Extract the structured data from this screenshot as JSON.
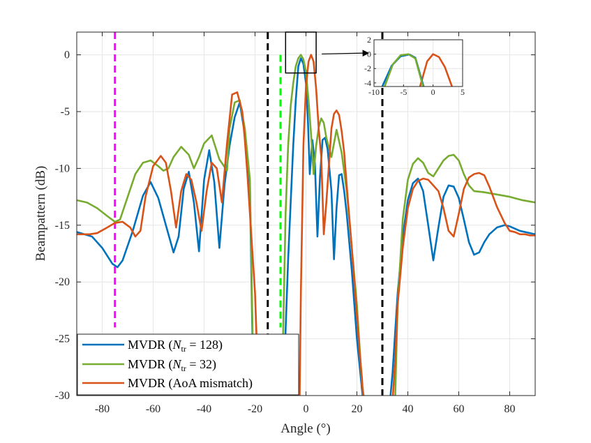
{
  "chart_data": {
    "type": "line",
    "title": "",
    "xlabel": "Angle (°)",
    "ylabel": "Beampattern (dB)",
    "xlim": [
      -90,
      90
    ],
    "ylim": [
      -30,
      2
    ],
    "grid": true,
    "xticks": [
      -80,
      -60,
      -40,
      -20,
      0,
      20,
      40,
      60,
      80
    ],
    "yticks": [
      0,
      -5,
      -10,
      -15,
      -20,
      -25,
      -30
    ],
    "xtick_labels": [
      "-80",
      "-60",
      "-40",
      "-20",
      "0",
      "20",
      "40",
      "60",
      "80"
    ],
    "ytick_labels": [
      "0",
      "-5",
      "-10",
      "-15",
      "-20",
      "-25",
      "-30"
    ],
    "legend_position": "bottom-left",
    "series": [
      {
        "name": "MVDR (N_tr = 128)",
        "legend_prefix": "MVDR (",
        "legend_math": "N",
        "legend_sub": "tr",
        "legend_suffix": " = 128)",
        "color": "#0072BD",
        "x": [
          -90,
          -84,
          -80,
          -76,
          -74,
          -72,
          -68,
          -64,
          -61,
          -58,
          -55,
          -52,
          -50,
          -48,
          -46,
          -44,
          -42,
          -40,
          -38,
          -36,
          -34,
          -32,
          -30,
          -28,
          -26,
          -24,
          -22,
          -20.6,
          -19,
          -17,
          -15,
          -13,
          -11,
          -9,
          -7,
          -5,
          -4,
          -3,
          -2,
          -1,
          0,
          0.8,
          1.5,
          2.5,
          3.5,
          4.5,
          5.5,
          6.5,
          7.5,
          8.5,
          10,
          11,
          12,
          13,
          14,
          15,
          16,
          18,
          20,
          22,
          22.5,
          23,
          23.5,
          24,
          25
        ],
        "y": [
          -15.6,
          -16.0,
          -17.0,
          -18.4,
          -18.7,
          -18.1,
          -15.5,
          -12.4,
          -11.2,
          -12.6,
          -15.0,
          -17.4,
          -16.0,
          -11.8,
          -10.3,
          -13.0,
          -17.3,
          -11.0,
          -8.4,
          -11.2,
          -17.0,
          -11.5,
          -8.0,
          -5.5,
          -4.2,
          -7.0,
          -12.0,
          -30.5,
          null,
          null,
          null,
          null,
          null,
          -30.5,
          -18.0,
          -8.0,
          -4.0,
          -1.0,
          -0.3,
          -0.8,
          -2.5,
          -6.0,
          -10.5,
          -7.5,
          -9.5,
          -16.0,
          -10.8,
          -7.5,
          -7.3,
          -8.3,
          -12.0,
          -18.0,
          -13.5,
          -10.6,
          -10.5,
          -12.0,
          -14.0,
          -19.0,
          -25.0,
          -29.5,
          -30.5,
          null,
          null,
          null,
          null
        ],
        "x2": [
          33,
          34,
          35,
          36,
          38,
          40,
          42,
          44,
          46,
          48,
          50,
          52,
          54,
          56,
          58,
          60,
          62,
          64,
          66,
          68,
          70,
          72,
          75,
          78,
          80,
          82,
          84,
          86,
          88,
          90
        ],
        "y2": [
          -30.5,
          -28.0,
          -24.5,
          -21.0,
          -16.0,
          -12.8,
          -11.3,
          -10.9,
          -12.0,
          -15.0,
          -18.1,
          -15.2,
          -12.5,
          -11.5,
          -11.6,
          -12.6,
          -14.5,
          -16.5,
          -17.6,
          -17.4,
          -16.5,
          -15.8,
          -15.2,
          -15.0,
          -15.1,
          -15.3,
          -15.5,
          -15.6,
          -15.7,
          -15.8
        ]
      },
      {
        "name": "MVDR (N_tr = 32)",
        "legend_prefix": "MVDR (",
        "legend_math": "N",
        "legend_sub": "tr",
        "legend_suffix": " = 32)",
        "color": "#77AC30",
        "x": [
          -90,
          -86,
          -82,
          -78,
          -75,
          -73,
          -70,
          -67,
          -64,
          -61,
          -58,
          -56,
          -54,
          -52,
          -49,
          -46,
          -44,
          -42,
          -40,
          -37,
          -34,
          -31,
          -30,
          -28,
          -26,
          -24,
          -22,
          -20.5,
          -19,
          -17,
          -15,
          -13,
          -11,
          -9.5,
          -8,
          -7,
          -6,
          -5,
          -4,
          -3,
          -2,
          -1,
          0,
          1,
          2,
          3,
          4,
          5,
          6,
          7,
          8,
          10,
          12,
          14,
          16,
          18,
          20,
          22,
          23,
          23.5,
          24
        ],
        "y": [
          -12.8,
          -13.0,
          -13.5,
          -14.2,
          -14.7,
          -14.5,
          -12.5,
          -10.5,
          -9.5,
          -9.3,
          -9.8,
          -10.2,
          -10.0,
          -9.0,
          -8.1,
          -8.8,
          -10.0,
          -9.0,
          -7.8,
          -7.1,
          -9.2,
          -10.2,
          -6.5,
          -4.2,
          -4.0,
          -6.5,
          -11.0,
          -30.5,
          null,
          null,
          null,
          null,
          null,
          -30.5,
          -14.0,
          -8.0,
          -4.5,
          -2.5,
          -1.0,
          -0.3,
          0.0,
          -0.4,
          -1.5,
          -4.0,
          -7.0,
          -10.5,
          -8.0,
          -6.4,
          -5.6,
          -6.0,
          -7.3,
          -9.0,
          -6.6,
          -8.6,
          -12.0,
          -17.0,
          -22.0,
          -29.0,
          -30.5,
          null,
          null
        ],
        "x2": [
          35,
          36,
          38,
          40,
          42,
          44,
          46,
          48,
          50,
          52,
          54,
          56,
          58,
          60,
          62,
          64,
          66,
          70,
          75,
          80,
          85,
          90
        ],
        "y2": [
          -30.5,
          -22.0,
          -14.5,
          -11.0,
          -9.6,
          -9.1,
          -9.5,
          -10.4,
          -10.7,
          -10.0,
          -9.3,
          -8.9,
          -8.8,
          -9.3,
          -10.5,
          -11.5,
          -12.0,
          -12.1,
          -12.3,
          -12.5,
          -12.8,
          -13.0
        ]
      },
      {
        "name": "MVDR (AoA mismatch)",
        "legend_prefix": "MVDR (AoA mismatch)",
        "legend_math": "",
        "legend_sub": "",
        "legend_suffix": "",
        "color": "#D95319",
        "x": [
          -90,
          -85,
          -82,
          -78,
          -75,
          -72,
          -69,
          -67,
          -65,
          -63,
          -60,
          -57,
          -55,
          -53,
          -51,
          -49,
          -47,
          -45,
          -43,
          -41,
          -39,
          -37,
          -35,
          -33,
          -31,
          -29,
          -27,
          -25,
          -24,
          -23,
          -22,
          -20,
          -18.5,
          -17,
          -15,
          -13,
          -11,
          -9,
          -7,
          -5,
          -3,
          -2.5,
          -2,
          -1,
          0,
          1,
          2,
          3,
          4,
          5,
          6,
          7,
          8,
          10,
          11,
          12,
          13,
          14,
          15,
          16,
          18,
          20,
          21,
          22,
          22.5,
          23,
          24
        ],
        "y": [
          -15.8,
          -15.8,
          -15.7,
          -15.2,
          -14.8,
          -14.7,
          -15.2,
          -16.0,
          -15.5,
          -12.5,
          -9.8,
          -8.9,
          -9.5,
          -12.0,
          -15.2,
          -12.0,
          -10.5,
          -11.0,
          -13.0,
          -15.5,
          -12.0,
          -9.5,
          -10.0,
          -13.0,
          -7.8,
          -3.5,
          -3.3,
          -5.0,
          -7.5,
          -10.5,
          -14.0,
          -21.0,
          -30.5,
          null,
          null,
          null,
          null,
          null,
          null,
          null,
          null,
          -30.5,
          -21.0,
          -8.0,
          -2.8,
          -0.6,
          0.0,
          -0.6,
          -3.0,
          -6.5,
          -9.0,
          -15.8,
          -13.0,
          -6.5,
          -5.2,
          -4.9,
          -5.3,
          -6.7,
          -8.6,
          -11.5,
          -17.0,
          -23.0,
          -26.0,
          -28.5,
          -30.5,
          null,
          null
        ],
        "x2": [
          34,
          35,
          36,
          38,
          40,
          42,
          44,
          46,
          48,
          50,
          52,
          54,
          56,
          58,
          60,
          62,
          64,
          66,
          68,
          70,
          72,
          75,
          78,
          80,
          82,
          84,
          86,
          88,
          90
        ],
        "y2": [
          -30.5,
          -27.0,
          -22.0,
          -17.0,
          -13.5,
          -11.8,
          -11.1,
          -10.9,
          -11.0,
          -11.5,
          -12.0,
          -13.5,
          -15.5,
          -16.0,
          -14.0,
          -11.8,
          -10.8,
          -10.5,
          -10.4,
          -10.6,
          -11.6,
          -13.4,
          -14.8,
          -15.5,
          -15.6,
          -15.8,
          -15.8,
          -15.9,
          -15.9
        ]
      }
    ],
    "vertical_markers": [
      {
        "name": "magenta-marker",
        "x": -75,
        "color": "#FF00FF",
        "y_top": 2,
        "y_bottom": -24
      },
      {
        "name": "black-marker-left",
        "x": -15,
        "color": "#000000",
        "y_top": 2,
        "y_bottom": -30
      },
      {
        "name": "green-marker",
        "x": -10,
        "color": "#00FF00",
        "y_top": 0,
        "y_bottom": -24
      },
      {
        "name": "black-marker-right",
        "x": 30,
        "color": "#000000",
        "y_top": 2,
        "y_bottom": -30
      }
    ],
    "zoom_box": {
      "x": [
        -8,
        4
      ],
      "y": [
        -1.6,
        2
      ]
    },
    "inset": {
      "xlim": [
        -10,
        5
      ],
      "ylim": [
        -4.5,
        2
      ],
      "xticks": [
        -10,
        -5,
        0,
        5
      ],
      "yticks": [
        2,
        0,
        -2,
        -4
      ],
      "xtick_labels": [
        "-10",
        "-5",
        "0",
        "5"
      ],
      "ytick_labels": [
        "2",
        "0",
        "-2",
        "-4"
      ],
      "curves": [
        {
          "name": "inset-curve-orange",
          "color": "#D95319",
          "x": [
            -2.2,
            -1,
            0,
            1,
            2,
            3.2
          ],
          "y": [
            -4.5,
            -1.0,
            0.0,
            -0.4,
            -1.8,
            -4.5
          ]
        },
        {
          "name": "inset-curve-blue",
          "color": "#0072BD",
          "x": [
            -8.6,
            -7,
            -5.5,
            -4,
            -3,
            -1.6
          ],
          "y": [
            -4.5,
            -1.6,
            -0.3,
            -0.05,
            -0.5,
            -4.5
          ]
        },
        {
          "name": "inset-curve-green",
          "color": "#77AC30",
          "x": [
            -8.2,
            -6.8,
            -5.5,
            -4.2,
            -3,
            -1.7
          ],
          "y": [
            -4.5,
            -1.4,
            -0.15,
            0.0,
            -0.6,
            -4.5
          ]
        }
      ]
    }
  }
}
